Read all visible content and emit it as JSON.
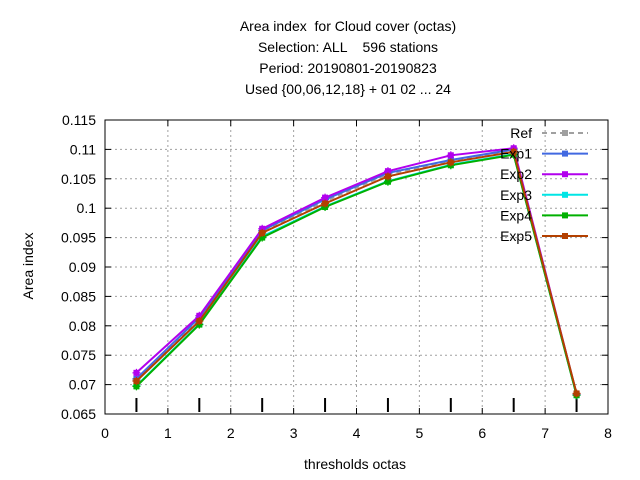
{
  "chart_data": {
    "type": "line",
    "title_lines": [
      "Area index  for Cloud cover (octas)",
      "Selection: ALL    596 stations",
      "Period: 20190801-20190823",
      "Used {00,06,12,18} + 01 02 ... 24"
    ],
    "xlabel": "thresholds octas",
    "ylabel": "Area index",
    "xlim": [
      0,
      8
    ],
    "ylim": [
      0.065,
      0.115
    ],
    "xticks": [
      "0",
      "1",
      "2",
      "3",
      "4",
      "5",
      "6",
      "7",
      "8"
    ],
    "yticks": [
      "0.065",
      "0.07",
      "0.075",
      "0.08",
      "0.085",
      "0.09",
      "0.095",
      "0.1",
      "0.105",
      "0.11",
      "0.115"
    ],
    "grid": true,
    "legend_position": "top-right",
    "x": [
      0.5,
      1.5,
      2.5,
      3.5,
      4.5,
      5.5,
      6.5,
      7.5
    ],
    "series": [
      {
        "name": "Ref",
        "color": "#a0a0a0",
        "dashed": true,
        "values": [
          0.0708,
          0.0812,
          0.096,
          0.1012,
          0.1058,
          0.108,
          0.1098,
          0.0683
        ]
      },
      {
        "name": "Exp1",
        "color": "#4169e1",
        "dashed": false,
        "values": [
          0.071,
          0.0814,
          0.0962,
          0.1015,
          0.106,
          0.1082,
          0.11,
          0.0683
        ]
      },
      {
        "name": "Exp2",
        "color": "#b200ee",
        "dashed": false,
        "values": [
          0.072,
          0.0817,
          0.0965,
          0.1018,
          0.1063,
          0.109,
          0.1102,
          0.0684
        ]
      },
      {
        "name": "Exp3",
        "color": "#00e5e5",
        "dashed": false,
        "values": [
          0.0698,
          0.0803,
          0.0952,
          0.1003,
          0.1046,
          0.1074,
          0.1092,
          0.0682
        ]
      },
      {
        "name": "Exp4",
        "color": "#00b000",
        "dashed": false,
        "values": [
          0.0697,
          0.0802,
          0.095,
          0.1002,
          0.1045,
          0.1073,
          0.1091,
          0.0682
        ]
      },
      {
        "name": "Exp5",
        "color": "#b34000",
        "dashed": false,
        "values": [
          0.0706,
          0.0808,
          0.0958,
          0.1008,
          0.1054,
          0.1078,
          0.1096,
          0.0685
        ]
      }
    ],
    "markers_at": [
      0.5,
      1.5,
      2.5,
      3.5,
      4.5,
      5.5,
      6.5,
      7.5
    ]
  }
}
